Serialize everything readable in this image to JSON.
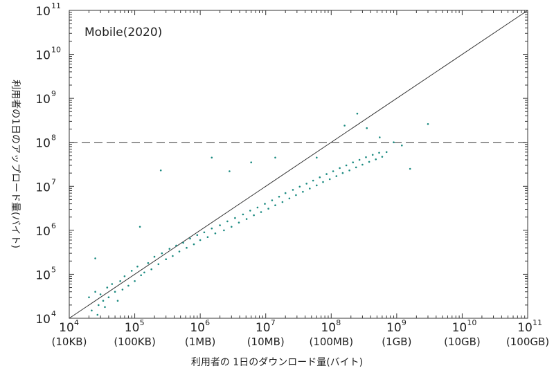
{
  "chart_data": {
    "type": "scatter",
    "title": "Mobile(2020)",
    "xlabel": "利用者の 1日のダウンロード量(バイト)",
    "ylabel": "利用者の1日のアップロード量(バイト)",
    "x_scale": "log",
    "y_scale": "log",
    "xlim": [
      10000,
      100000000000
    ],
    "ylim": [
      10000,
      100000000000
    ],
    "x_ticks": [
      {
        "value": 10000,
        "base": "10",
        "exp": "4",
        "unit": "(10KB)"
      },
      {
        "value": 100000,
        "base": "10",
        "exp": "5",
        "unit": "(100KB)"
      },
      {
        "value": 1000000,
        "base": "10",
        "exp": "6",
        "unit": "(1MB)"
      },
      {
        "value": 10000000,
        "base": "10",
        "exp": "7",
        "unit": "(10MB)"
      },
      {
        "value": 100000000,
        "base": "10",
        "exp": "8",
        "unit": "(100MB)"
      },
      {
        "value": 1000000000,
        "base": "10",
        "exp": "9",
        "unit": "(1GB)"
      },
      {
        "value": 10000000000,
        "base": "10",
        "exp": "10",
        "unit": "(10GB)"
      },
      {
        "value": 100000000000,
        "base": "10",
        "exp": "11",
        "unit": "(100GB)"
      }
    ],
    "y_ticks": [
      {
        "value": 10000,
        "base": "10",
        "exp": "4"
      },
      {
        "value": 100000,
        "base": "10",
        "exp": "5"
      },
      {
        "value": 1000000,
        "base": "10",
        "exp": "6"
      },
      {
        "value": 10000000,
        "base": "10",
        "exp": "7"
      },
      {
        "value": 100000000,
        "base": "10",
        "exp": "8"
      },
      {
        "value": 1000000000,
        "base": "10",
        "exp": "9"
      },
      {
        "value": 10000000000,
        "base": "10",
        "exp": "10"
      },
      {
        "value": 100000000000,
        "base": "10",
        "exp": "11"
      }
    ],
    "reference_lines": [
      {
        "kind": "diagonal",
        "description": "y = x",
        "style": "solid",
        "color": "#333333"
      },
      {
        "kind": "horizontal",
        "y": 100000000,
        "style": "dashed",
        "color": "#333333"
      }
    ],
    "point_color": "#1a8a80",
    "series": [
      {
        "points": [
          [
            20000,
            30000
          ],
          [
            22000,
            15000
          ],
          [
            25000,
            40000
          ],
          [
            28000,
            20000
          ],
          [
            30000,
            35000
          ],
          [
            33000,
            25000
          ],
          [
            35000,
            18000
          ],
          [
            38000,
            50000
          ],
          [
            40000,
            30000
          ],
          [
            45000,
            60000
          ],
          [
            50000,
            40000
          ],
          [
            55000,
            25000
          ],
          [
            60000,
            70000
          ],
          [
            65000,
            45000
          ],
          [
            70000,
            90000
          ],
          [
            80000,
            55000
          ],
          [
            90000,
            120000
          ],
          [
            100000,
            70000
          ],
          [
            110000,
            150000
          ],
          [
            125000,
            95000
          ],
          [
            140000,
            110000
          ],
          [
            160000,
            180000
          ],
          [
            180000,
            130000
          ],
          [
            200000,
            250000
          ],
          [
            230000,
            170000
          ],
          [
            260000,
            300000
          ],
          [
            300000,
            220000
          ],
          [
            340000,
            380000
          ],
          [
            380000,
            260000
          ],
          [
            430000,
            450000
          ],
          [
            480000,
            330000
          ],
          [
            550000,
            520000
          ],
          [
            620000,
            400000
          ],
          [
            700000,
            650000
          ],
          [
            800000,
            480000
          ],
          [
            900000,
            780000
          ],
          [
            1000000,
            600000
          ],
          [
            1150000,
            900000
          ],
          [
            1300000,
            700000
          ],
          [
            1500000,
            1100000
          ],
          [
            1700000,
            850000
          ],
          [
            2000000,
            1300000
          ],
          [
            2300000,
            1000000
          ],
          [
            2600000,
            1600000
          ],
          [
            3000000,
            1200000
          ],
          [
            3400000,
            1900000
          ],
          [
            3900000,
            1500000
          ],
          [
            4500000,
            2300000
          ],
          [
            5100000,
            1800000
          ],
          [
            5800000,
            2800000
          ],
          [
            6600000,
            2200000
          ],
          [
            7500000,
            3300000
          ],
          [
            8500000,
            2600000
          ],
          [
            9700000,
            4000000
          ],
          [
            11000000,
            3100000
          ],
          [
            12500000,
            4800000
          ],
          [
            14000000,
            3700000
          ],
          [
            16000000,
            5800000
          ],
          [
            18000000,
            4400000
          ],
          [
            20000000,
            7000000
          ],
          [
            23000000,
            5300000
          ],
          [
            26000000,
            8300000
          ],
          [
            29000000,
            6300000
          ],
          [
            33000000,
            9800000
          ],
          [
            37000000,
            7500000
          ],
          [
            42000000,
            11500000
          ],
          [
            47000000,
            8900000
          ],
          [
            53000000,
            13500000
          ],
          [
            60000000,
            10500000
          ],
          [
            67000000,
            16000000
          ],
          [
            75000000,
            12500000
          ],
          [
            85000000,
            19000000
          ],
          [
            95000000,
            14500000
          ],
          [
            107000000,
            22000000
          ],
          [
            120000000,
            17000000
          ],
          [
            135000000,
            26000000
          ],
          [
            150000000,
            20000000
          ],
          [
            170000000,
            30000000
          ],
          [
            190000000,
            23000000
          ],
          [
            215000000,
            35000000
          ],
          [
            240000000,
            27000000
          ],
          [
            270000000,
            40000000
          ],
          [
            300000000,
            31000000
          ],
          [
            340000000,
            46000000
          ],
          [
            380000000,
            36000000
          ],
          [
            430000000,
            52000000
          ],
          [
            480000000,
            41000000
          ],
          [
            540000000,
            58000000
          ],
          [
            600000000,
            47000000
          ],
          [
            700000000,
            60000000
          ],
          [
            25000,
            230000
          ],
          [
            27000,
            12000
          ],
          [
            120000,
            1200000
          ],
          [
            250000,
            23000000
          ],
          [
            1500000,
            45000000
          ],
          [
            2800000,
            22000000
          ],
          [
            6000000,
            35000000
          ],
          [
            14000000,
            45000000
          ],
          [
            60000000,
            45000000
          ],
          [
            250000000,
            450000000
          ],
          [
            160000000,
            240000000
          ],
          [
            3000000000,
            260000000
          ],
          [
            1600000000,
            25000000
          ],
          [
            1200000000,
            85000000
          ],
          [
            900000000,
            100000000
          ],
          [
            550000000,
            130000000
          ],
          [
            350000000,
            210000000
          ]
        ]
      }
    ]
  }
}
